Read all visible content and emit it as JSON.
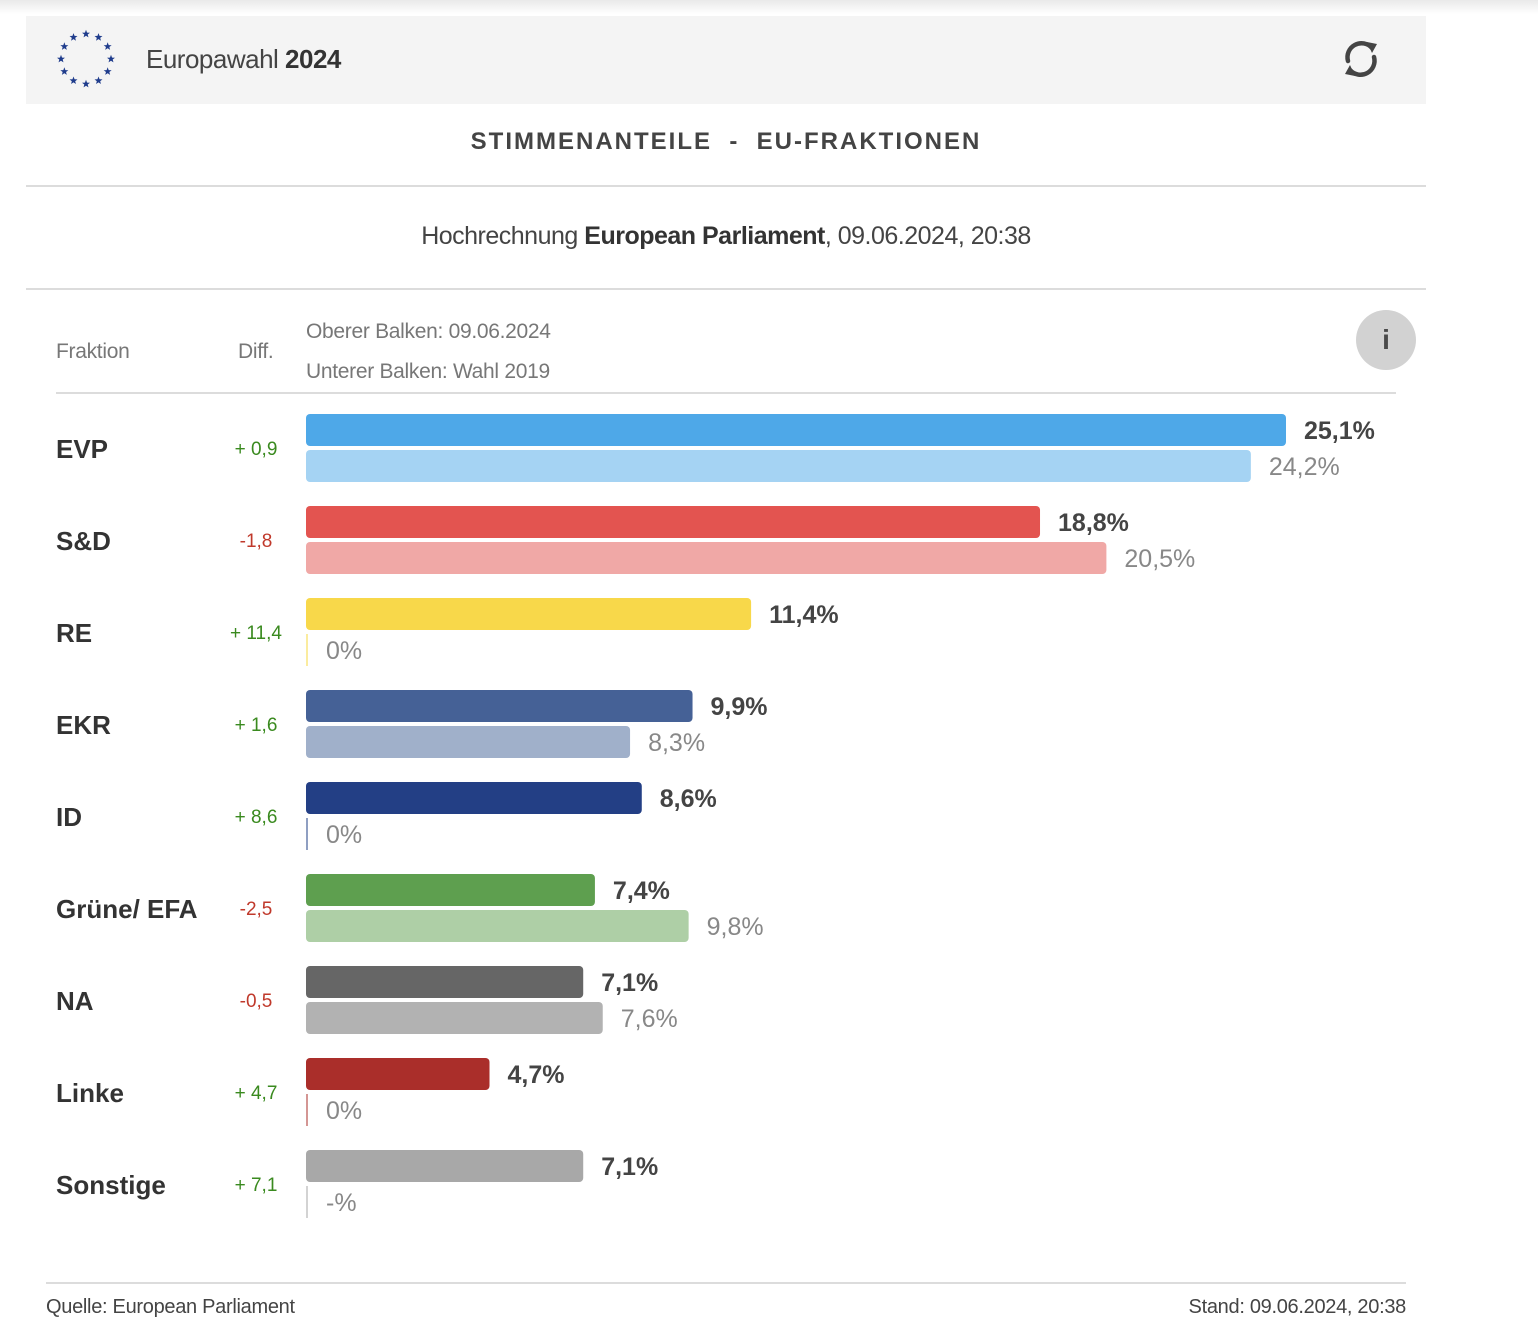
{
  "header": {
    "title_light": "Europawahl",
    "title_bold": "2024",
    "logo_icon": "eu-stars-icon",
    "refresh_icon": "refresh-icon"
  },
  "section_title": "STIMMENANTEILE  -  EU-FRAKTIONEN",
  "subtitle": {
    "prefix": "Hochrechnung",
    "bold": "European Parliament",
    "suffix": ", 09.06.2024, 20:38"
  },
  "columns": {
    "fraktion": "Fraktion",
    "diff": "Diff."
  },
  "legend": {
    "upper": "Oberer Balken: 09.06.2024",
    "lower": "Unterer Balken: Wahl 2019"
  },
  "info_label": "i",
  "chart_data": {
    "type": "bar",
    "orientation": "horizontal",
    "title": "STIMMENANTEILE - EU-FRAKTIONEN",
    "categories": [
      "EVP",
      "S&D",
      "RE",
      "EKR",
      "ID",
      "Grüne/ EFA",
      "NA",
      "Linke",
      "Sonstige"
    ],
    "diffs": [
      "+ 0,9",
      "-1,8",
      "+ 11,4",
      "+ 1,6",
      "+ 8,6",
      "-2,5",
      "-0,5",
      "+ 4,7",
      "+ 7,1"
    ],
    "diff_positive_color": "#3a8a1f",
    "diff_negative_color": "#c0392b",
    "xlim": [
      0,
      25.1
    ],
    "series": [
      {
        "name": "Oberer Balken: 09.06.2024",
        "values": [
          25.1,
          18.8,
          11.4,
          9.9,
          8.6,
          7.4,
          7.1,
          4.7,
          7.1
        ],
        "labels": [
          "25,1%",
          "18,8%",
          "11,4%",
          "9,9%",
          "8,6%",
          "7,4%",
          "7,1%",
          "4,7%",
          "7,1%"
        ],
        "colors": [
          "#4ea8e8",
          "#e35450",
          "#f8d84a",
          "#456196",
          "#233f85",
          "#5e9f4f",
          "#666666",
          "#aa2e2a",
          "#a8a8a8"
        ]
      },
      {
        "name": "Unterer Balken: Wahl 2019",
        "values": [
          24.2,
          20.5,
          0,
          8.3,
          0,
          9.8,
          7.6,
          0,
          null
        ],
        "labels": [
          "24,2%",
          "20,5%",
          "0%",
          "8,3%",
          "0%",
          "9,8%",
          "7,6%",
          "0%",
          "-%"
        ],
        "colors": [
          "#a5d3f3",
          "#f0a8a6",
          "#fbec9f",
          "#a0b0ca",
          "#8f9fc2",
          "#aecfa6",
          "#b2b2b2",
          "#d49694",
          "#d3d3d3"
        ]
      }
    ]
  },
  "footer": {
    "source": "Quelle: European Parliament",
    "stand": "Stand: 09.06.2024, 20:38"
  }
}
